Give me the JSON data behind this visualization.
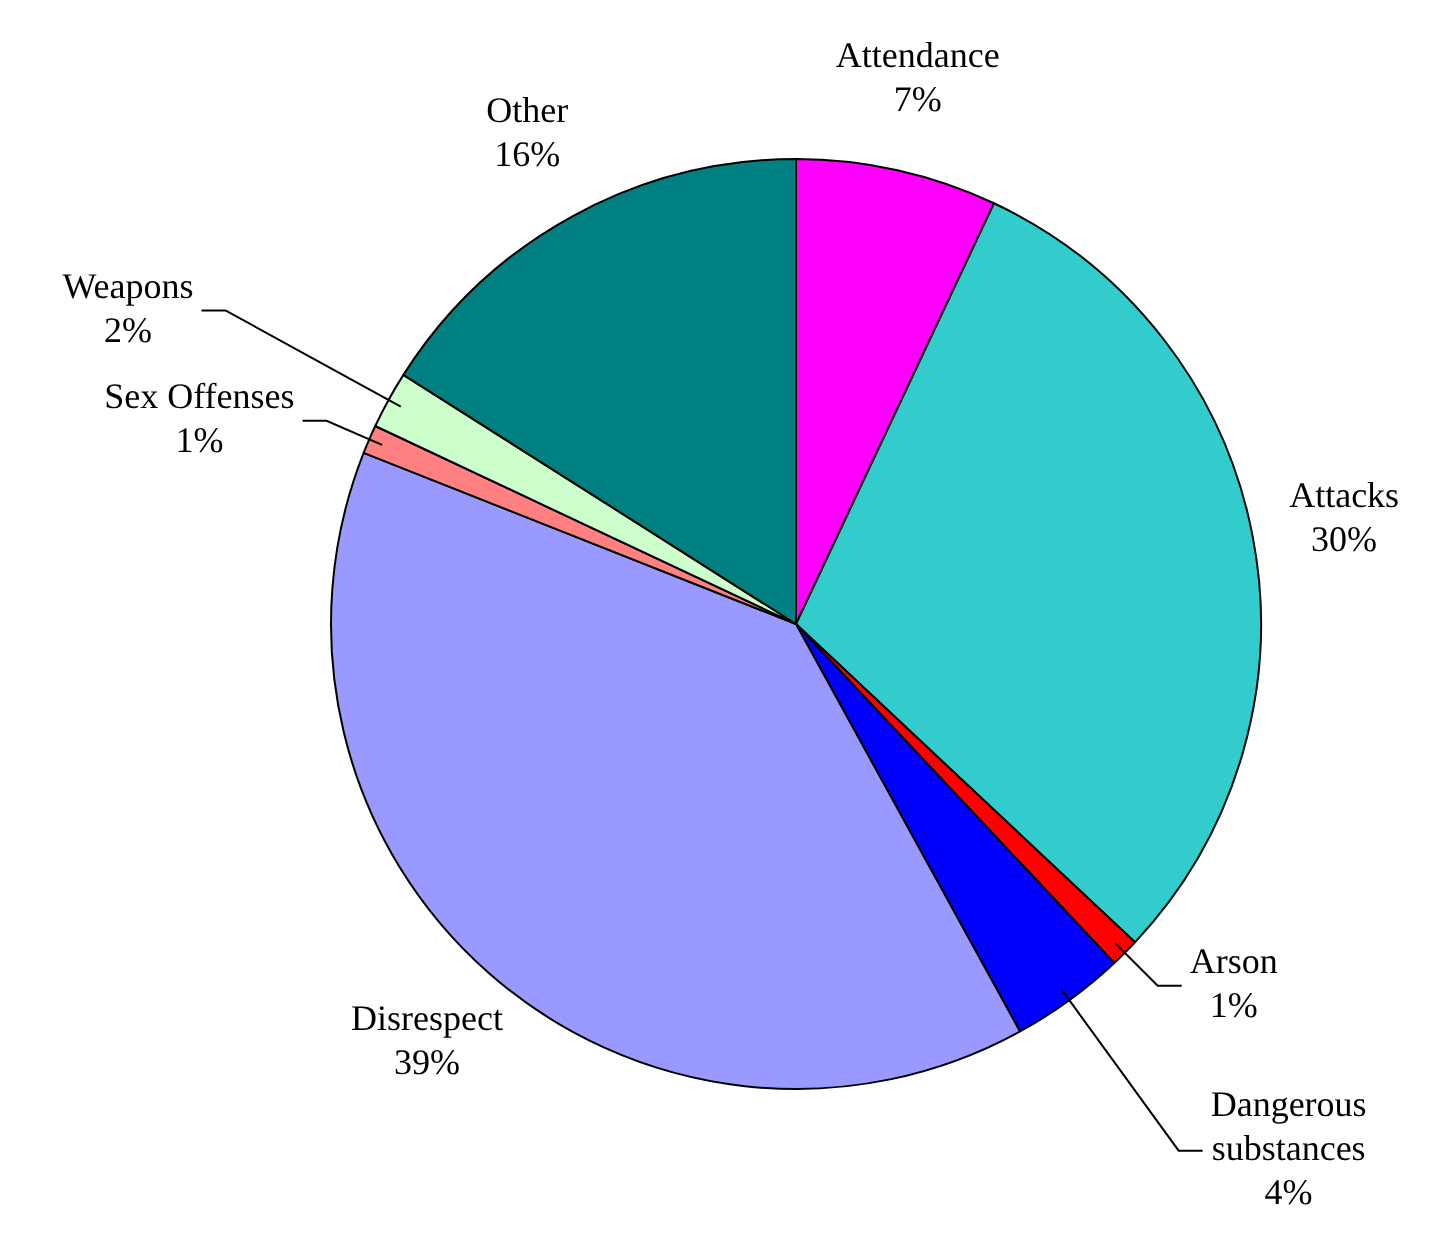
{
  "chart_data": {
    "type": "pie",
    "categories": [
      "Attendance",
      "Attacks",
      "Arson",
      "Dangerous substances",
      "Disrespect",
      "Sex Offenses",
      "Weapons",
      "Other"
    ],
    "values": [
      7,
      30,
      1,
      4,
      39,
      1,
      2,
      16
    ],
    "value_labels": [
      "7%",
      "30%",
      "1%",
      "4%",
      "39%",
      "1%",
      "2%",
      "16%"
    ],
    "colors": [
      "#ff00ff",
      "#33cccc",
      "#ff0000",
      "#0000ff",
      "#9999ff",
      "#ff8080",
      "#ccffcc",
      "#008080"
    ],
    "legend": false
  }
}
